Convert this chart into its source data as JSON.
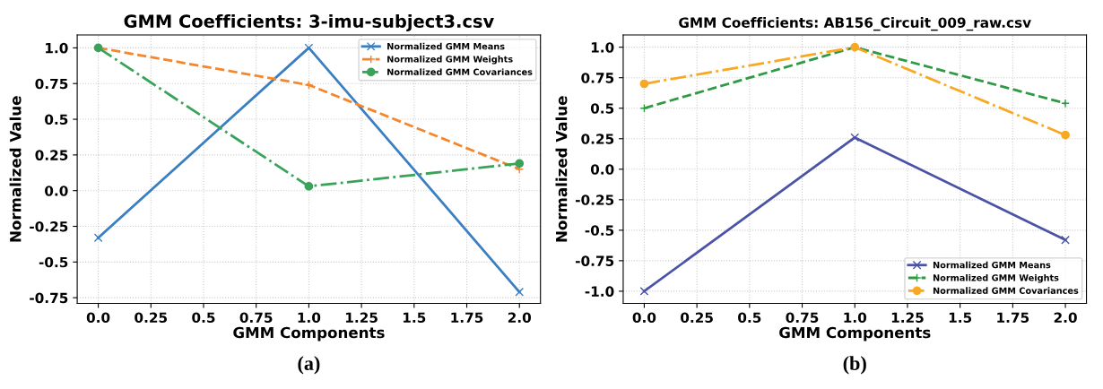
{
  "chart_data": [
    {
      "type": "line",
      "title": "GMM Coefficients: 3-imu-subject3.csv",
      "xlabel": "GMM Components",
      "ylabel": "Normalized Value",
      "x": [
        0.0,
        1.0,
        2.0
      ],
      "xlim": [
        -0.1,
        2.1
      ],
      "ylim": [
        -0.79,
        1.09
      ],
      "xticks": [
        {
          "value": 0,
          "label": "0.0"
        },
        0.25,
        0.5,
        0.75,
        {
          "value": 1,
          "label": "1.0"
        },
        1.25,
        1.5,
        1.75,
        {
          "value": 2,
          "label": "2.0"
        }
      ],
      "yticks": [
        -0.75,
        -0.5,
        -0.25,
        {
          "value": 0,
          "label": "0.0"
        },
        0.25,
        0.5,
        0.75,
        {
          "value": 1,
          "label": "1.0"
        }
      ],
      "grid": true,
      "legend": "top right",
      "annotations": [
        "(a)"
      ],
      "series": [
        {
          "name": "Normalized GMM Means",
          "color": "#3a7fc1",
          "values": [
            -0.33,
            1.0,
            -0.71
          ],
          "marker": "cross",
          "line_style": "solid"
        },
        {
          "name": "Normalized GMM Weights",
          "color": "#f5862b",
          "values": [
            1.0,
            0.74,
            0.15
          ],
          "marker": "plus",
          "line_style": "dashed"
        },
        {
          "name": "Normalized GMM Covariances",
          "color": "#3aa35a",
          "values": [
            1.0,
            0.03,
            0.19
          ],
          "marker": "circle",
          "line_style": "dashdot"
        }
      ]
    },
    {
      "type": "line",
      "title": "GMM Coefficients: AB156_Circuit_009_raw.csv",
      "xlabel": "GMM Components",
      "ylabel": "Normalized Value",
      "x": [
        0.0,
        1.0,
        2.0
      ],
      "xlim": [
        -0.1,
        2.1
      ],
      "ylim": [
        -1.1,
        1.1
      ],
      "xticks": [
        {
          "value": 0,
          "label": "0.0"
        },
        0.25,
        0.5,
        0.75,
        {
          "value": 1,
          "label": "1.0"
        },
        1.25,
        1.5,
        1.75,
        {
          "value": 2,
          "label": "2.0"
        }
      ],
      "yticks": [
        {
          "value": -1,
          "label": "-1.0"
        },
        -0.75,
        -0.5,
        -0.25,
        {
          "value": 0,
          "label": "0.0"
        },
        0.25,
        0.5,
        0.75,
        {
          "value": 1,
          "label": "1.0"
        }
      ],
      "grid": true,
      "legend": "bottom right",
      "annotations": [
        "(b)"
      ],
      "series": [
        {
          "name": "Normalized GMM Means",
          "color": "#4b53a6",
          "values": [
            -1.0,
            0.26,
            -0.58
          ],
          "marker": "cross",
          "line_style": "solid"
        },
        {
          "name": "Normalized GMM Weights",
          "color": "#2f9a44",
          "values": [
            0.5,
            1.0,
            0.54
          ],
          "marker": "plus",
          "line_style": "dashed"
        },
        {
          "name": "Normalized GMM Covariances",
          "color": "#f8a823",
          "values": [
            0.7,
            1.0,
            0.28
          ],
          "marker": "circle",
          "line_style": "dashdot"
        }
      ]
    }
  ]
}
